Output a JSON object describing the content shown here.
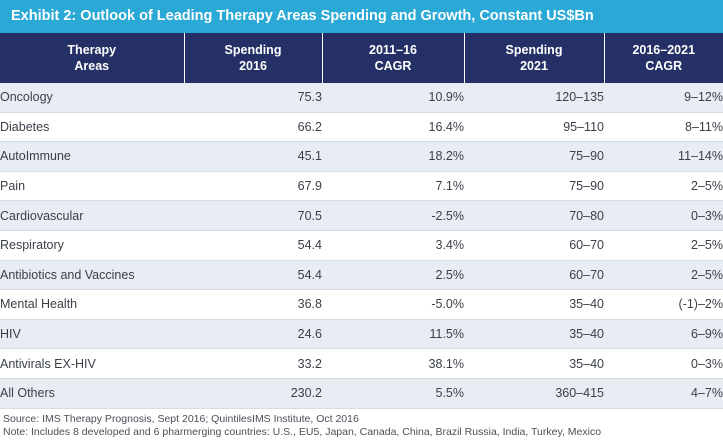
{
  "chart_data": {
    "type": "table",
    "title": "Exhibit 2: Outlook of Leading Therapy Areas Spending and Growth, Constant US$Bn",
    "columns": [
      [
        "Therapy",
        "Areas"
      ],
      [
        "Spending",
        "2016"
      ],
      [
        "2011–16",
        "CAGR"
      ],
      [
        "Spending",
        "2021"
      ],
      [
        "2016–2021",
        "CAGR"
      ]
    ],
    "rows": [
      [
        "Oncology",
        "75.3",
        "10.9%",
        "120–135",
        "9–12%"
      ],
      [
        "Diabetes",
        "66.2",
        "16.4%",
        "95–110",
        "8–11%"
      ],
      [
        "AutoImmune",
        "45.1",
        "18.2%",
        "75–90",
        "11–14%"
      ],
      [
        "Pain",
        "67.9",
        "7.1%",
        "75–90",
        "2–5%"
      ],
      [
        "Cardiovascular",
        "70.5",
        "-2.5%",
        "70–80",
        "0–3%"
      ],
      [
        "Respiratory",
        "54.4",
        "3.4%",
        "60–70",
        "2–5%"
      ],
      [
        "Antibiotics and Vaccines",
        "54.4",
        "2.5%",
        "60–70",
        "2–5%"
      ],
      [
        "Mental Health",
        "36.8",
        "-5.0%",
        "35–40",
        "(-1)–2%"
      ],
      [
        "HIV",
        "24.6",
        "11.5%",
        "35–40",
        "6–9%"
      ],
      [
        "Antivirals EX-HIV",
        "33.2",
        "38.1%",
        "35–40",
        "0–3%"
      ],
      [
        "All Others",
        "230.2",
        "5.5%",
        "360–415",
        "4–7%"
      ]
    ],
    "source": "Source: IMS Therapy Prognosis, Sept 2016; QuintilesIMS Institute, Oct 2016",
    "note": "Note: Includes 8 developed and 6 pharmerging countries: U.S., EU5, Japan, Canada, China, Brazil Russia, India, Turkey, Mexico"
  },
  "colors": {
    "title_bar": "#2aa8d6",
    "header": "#253066",
    "row_shade": "#e8edf3"
  }
}
